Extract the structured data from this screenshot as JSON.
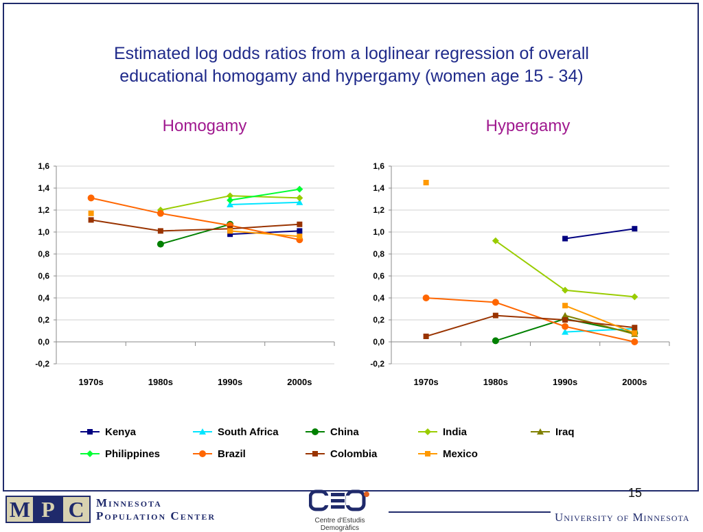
{
  "slide": {
    "title_line1": "Estimated log odds ratios from a loglinear regression of overall",
    "title_line2": "educational homogamy and hypergamy (women age 15 - 34)",
    "page_number": "15"
  },
  "footer": {
    "mpc_letters": [
      "M",
      "P",
      "C"
    ],
    "mpc_line1": "Minnesota",
    "mpc_line2": "Population Center",
    "ced_name": "Centre d'Estudis Demogràfics",
    "university": "University of Minnesota"
  },
  "legend": [
    {
      "name": "Kenya",
      "color": "#000080",
      "marker": "square"
    },
    {
      "name": "South Africa",
      "color": "#00e5ff",
      "marker": "triangle"
    },
    {
      "name": "China",
      "color": "#008000",
      "marker": "circle"
    },
    {
      "name": "India",
      "color": "#99cc00",
      "marker": "diamond"
    },
    {
      "name": "Iraq",
      "color": "#808000",
      "marker": "triangle"
    },
    {
      "name": "Philippines",
      "color": "#00ff33",
      "marker": "diamond"
    },
    {
      "name": "Brazil",
      "color": "#ff6600",
      "marker": "circle"
    },
    {
      "name": "Colombia",
      "color": "#993300",
      "marker": "square"
    },
    {
      "name": "Mexico",
      "color": "#ff9900",
      "marker": "square"
    }
  ],
  "chart_data": [
    {
      "type": "line",
      "title": "Homogamy",
      "categories": [
        "1970s",
        "1980s",
        "1990s",
        "2000s"
      ],
      "ylim": [
        -0.2,
        1.6
      ],
      "yticks": [
        "-0,2",
        "0,0",
        "0,2",
        "0,4",
        "0,6",
        "0,8",
        "1,0",
        "1,2",
        "1,4",
        "1,6"
      ],
      "grid": true,
      "series": [
        {
          "name": "Kenya",
          "values": [
            null,
            null,
            0.98,
            1.01
          ]
        },
        {
          "name": "South Africa",
          "values": [
            null,
            null,
            1.25,
            1.27
          ]
        },
        {
          "name": "China",
          "values": [
            null,
            0.89,
            1.07,
            null
          ]
        },
        {
          "name": "India",
          "values": [
            null,
            1.2,
            1.33,
            1.31
          ]
        },
        {
          "name": "Philippines",
          "values": [
            null,
            null,
            1.29,
            1.39
          ]
        },
        {
          "name": "Brazil",
          "values": [
            1.31,
            1.17,
            1.06,
            0.93
          ]
        },
        {
          "name": "Colombia",
          "values": [
            1.11,
            1.01,
            1.03,
            1.07
          ]
        },
        {
          "name": "Mexico",
          "values": [
            1.17,
            null,
            1.01,
            0.96
          ]
        }
      ]
    },
    {
      "type": "line",
      "title": "Hypergamy",
      "categories": [
        "1970s",
        "1980s",
        "1990s",
        "2000s"
      ],
      "ylim": [
        -0.2,
        1.6
      ],
      "yticks": [
        "-0,2",
        "0,0",
        "0,2",
        "0,4",
        "0,6",
        "0,8",
        "1,0",
        "1,2",
        "1,4",
        "1,6"
      ],
      "grid": true,
      "series": [
        {
          "name": "Kenya",
          "values": [
            null,
            null,
            0.94,
            1.03
          ]
        },
        {
          "name": "South Africa",
          "values": [
            null,
            null,
            0.09,
            0.12
          ]
        },
        {
          "name": "China",
          "values": [
            null,
            0.01,
            0.21,
            0.08
          ]
        },
        {
          "name": "India",
          "values": [
            null,
            0.92,
            0.47,
            0.41
          ]
        },
        {
          "name": "Iraq",
          "values": [
            null,
            null,
            0.24,
            0.07
          ]
        },
        {
          "name": "Brazil",
          "values": [
            0.4,
            0.36,
            0.14,
            0.0
          ]
        },
        {
          "name": "Colombia",
          "values": [
            0.05,
            0.24,
            0.2,
            0.13
          ]
        },
        {
          "name": "Mexico",
          "values": [
            1.45,
            null,
            0.33,
            0.08
          ]
        }
      ]
    }
  ]
}
